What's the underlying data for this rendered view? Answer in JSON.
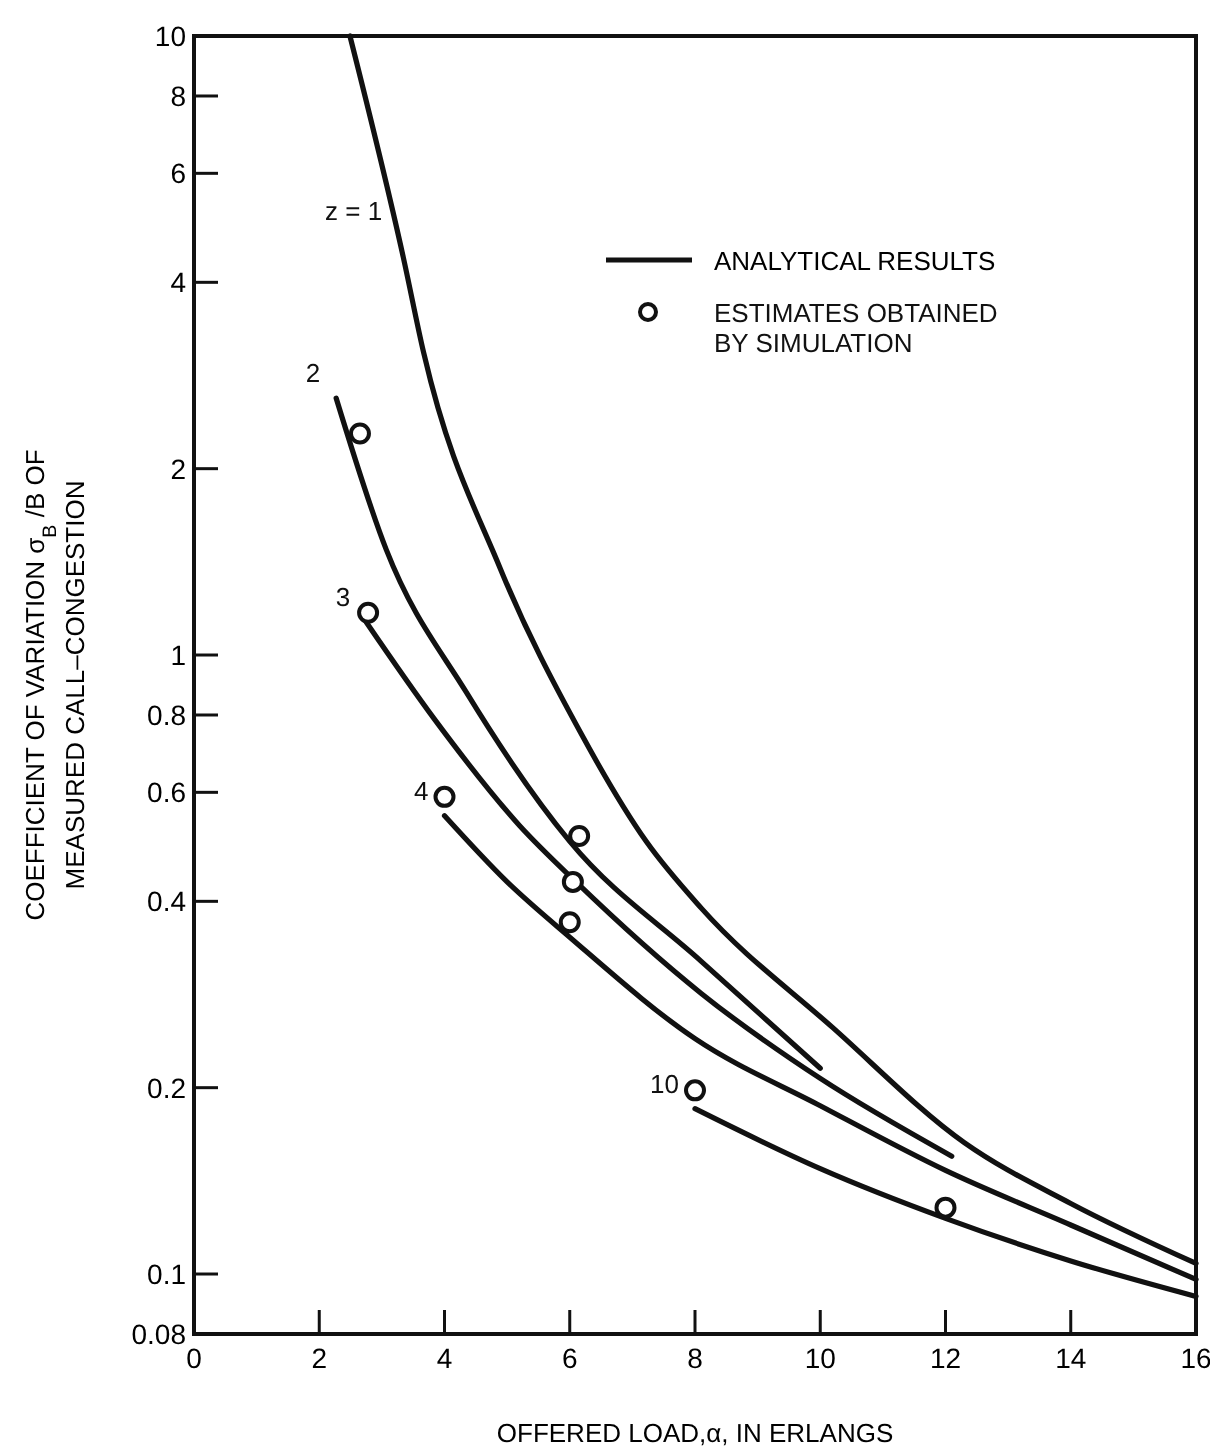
{
  "chart_data": {
    "type": "line",
    "xlabel": "OFFERED LOAD,α, IN ERLANGS",
    "ylabel": "COEFFICIENT OF VARIATION σ$_{B}$/B OF\nMEASURED CALL–CONGESTION",
    "log": "y",
    "xlim": [
      0,
      16
    ],
    "ylim": [
      0.08,
      10
    ],
    "xticks": [
      0,
      2,
      4,
      6,
      8,
      10,
      12,
      14,
      16
    ],
    "yticks": [
      0.08,
      0.1,
      0.2,
      0.4,
      0.6,
      0.8,
      1,
      2,
      4,
      6,
      8,
      10
    ],
    "legend": "top right",
    "grid": false,
    "line_style": "solid",
    "annotations": [
      "ANALYTICAL RESULTS"
    ],
    "series": [
      {
        "name": "z = 1",
        "type": "line",
        "color": "#111111",
        "marker": "none",
        "x": [
          2.49,
          3.34,
          3.67,
          4.89,
          6.17,
          7.22,
          8.1,
          10.2,
          12.3,
          14,
          16
        ],
        "values": [
          10,
          4.4,
          3.07,
          1.38,
          0.75,
          0.5,
          0.39,
          0.25,
          0.163,
          0.13,
          0.104
        ]
      },
      {
        "name": "2",
        "type": "line",
        "color": "#111111",
        "marker": "none",
        "x": [
          2.27,
          3.07,
          4.35,
          6,
          8.1,
          10
        ],
        "values": [
          2.6,
          1.48,
          0.87,
          0.5,
          0.32,
          0.215
        ]
      },
      {
        "name": "3",
        "type": "line",
        "color": "#111111",
        "marker": "none",
        "x": [
          2.75,
          3.83,
          5.2,
          6.1,
          8.1,
          10,
          12.1
        ],
        "values": [
          1.13,
          0.79,
          0.53,
          0.43,
          0.284,
          0.207,
          0.155
        ]
      },
      {
        "name": "4",
        "type": "line",
        "color": "#111111",
        "marker": "none",
        "x": [
          4,
          5,
          6,
          8,
          10,
          12,
          14,
          16
        ],
        "values": [
          0.55,
          0.43,
          0.35,
          0.24,
          0.187,
          0.147,
          0.12,
          0.098
        ]
      },
      {
        "name": "10",
        "type": "line",
        "color": "#111111",
        "marker": "none",
        "x": [
          8,
          10,
          12,
          14,
          16
        ],
        "values": [
          0.185,
          0.148,
          0.123,
          0.105,
          0.092
        ]
      },
      {
        "name": "ESTIMATES OBTAINED\nBY SIMULATION",
        "type": "scatter",
        "color": "#111111",
        "marker": "circle",
        "x": [
          2.65,
          2.78,
          4,
          6.15,
          6.05,
          6,
          8,
          12
        ],
        "values": [
          2.28,
          1.17,
          0.59,
          0.51,
          0.43,
          0.37,
          0.198,
          0.128
        ]
      }
    ]
  }
}
